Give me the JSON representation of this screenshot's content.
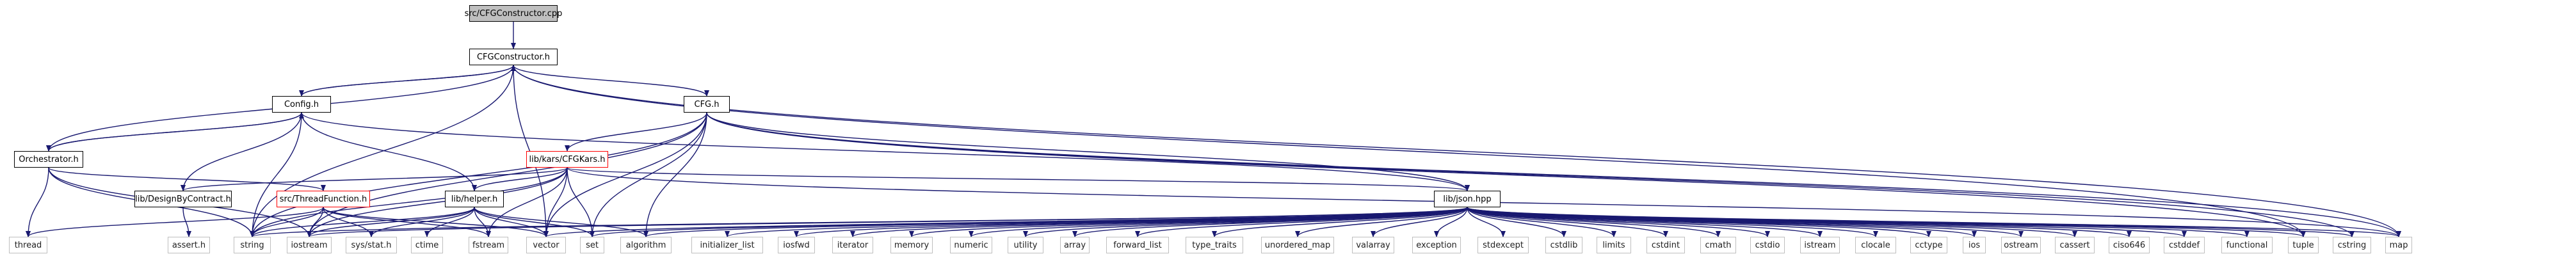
{
  "colors": {
    "edge": "#191970",
    "plain_border": "#bfbfbf",
    "red_border": "#ff0000",
    "root_fill": "#bfbfbf"
  },
  "nodes": {
    "root": "src/CFGConstructor.cpp",
    "cfgconstructor_h": "CFGConstructor.h",
    "config_h": "Config.h",
    "cfg_h": "CFG.h",
    "orchestrator_h": "Orchestrator.h",
    "cfgkars_h": "lib/kars/CFGKars.h",
    "dbc_h": "lib/DesignByContract.h",
    "threadfunction_h": "src/ThreadFunction.h",
    "helper_h": "lib/helper.h",
    "json_hpp": "lib/json.hpp",
    "thread": "thread",
    "assert_h": "assert.h",
    "string": "string",
    "iostream": "iostream",
    "sys_stat_h": "sys/stat.h",
    "ctime": "ctime",
    "fstream": "fstream",
    "vector": "vector",
    "set": "set",
    "algorithm": "algorithm",
    "initializer_list": "initializer_list",
    "iosfwd": "iosfwd",
    "iterator": "iterator",
    "memory": "memory",
    "numeric": "numeric",
    "utility": "utility",
    "array": "array",
    "forward_list": "forward_list",
    "type_traits": "type_traits",
    "unordered_map": "unordered_map",
    "valarray": "valarray",
    "exception": "exception",
    "stdexcept": "stdexcept",
    "cstdlib": "cstdlib",
    "limits": "limits",
    "cstdint": "cstdint",
    "cmath": "cmath",
    "cstdio": "cstdio",
    "istream": "istream",
    "clocale": "clocale",
    "cctype": "cctype",
    "ios": "ios",
    "ostream": "ostream",
    "cassert": "cassert",
    "ciso646": "ciso646",
    "cstddef": "cstddef",
    "functional": "functional",
    "tuple": "tuple",
    "cstring": "cstring",
    "map": "map"
  }
}
